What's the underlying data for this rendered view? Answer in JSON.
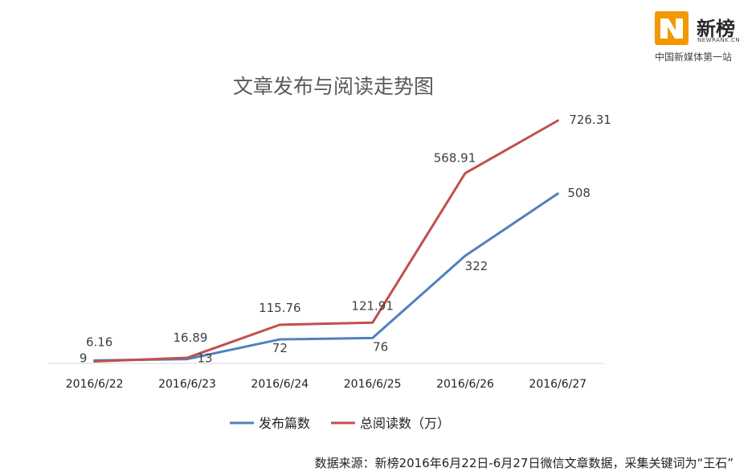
{
  "logo": {
    "name": "新榜",
    "domain": "NEWRANK.CN",
    "slogan": "中国新媒体第一站",
    "icon": "newrank-logo-icon",
    "colors": {
      "orange": "#f39800",
      "dark": "#2a2a2a"
    }
  },
  "footer": {
    "source": "数据来源：新榜2016年6月22日-6月27日微信文章数据，采集关键词为“王石”"
  },
  "colors": {
    "blue": "#4f81bd",
    "red": "#c0504d",
    "axis": "#d9d9d9"
  },
  "chart_data": {
    "type": "line",
    "title": "文章发布与阅读走势图",
    "categories": [
      "2016/6/22",
      "2016/6/23",
      "2016/6/24",
      "2016/6/25",
      "2016/6/26",
      "2016/6/27"
    ],
    "series": [
      {
        "name": "发布篇数",
        "values": [
          9,
          13,
          72,
          76,
          322,
          508
        ],
        "labels": [
          "9",
          "13",
          "72",
          "76",
          "322",
          "508"
        ],
        "color": "#4f81bd"
      },
      {
        "name": "总阅读数（万）",
        "values": [
          6.16,
          16.89,
          115.76,
          121.91,
          568.91,
          726.31
        ],
        "labels": [
          "6.16",
          "16.89",
          "115.76",
          "121.91",
          "568.91",
          "726.31"
        ],
        "color": "#c0504d"
      }
    ],
    "ylim": [
      0,
      800
    ],
    "grid": false,
    "legend": "bottom"
  }
}
